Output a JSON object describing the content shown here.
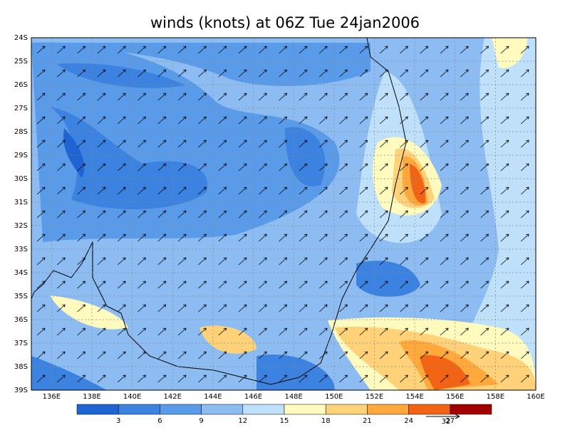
{
  "map": {
    "title": "winds (knots) at 06Z Tue 24jan2006",
    "lat_labels": [
      "24S",
      "25S",
      "26S",
      "27S",
      "28S",
      "29S",
      "30S",
      "31S",
      "32S",
      "33S",
      "34S",
      "35S",
      "36S",
      "37S",
      "38S",
      "39S"
    ],
    "lon_labels": [
      "136E",
      "138E",
      "140E",
      "142E",
      "144E",
      "146E",
      "148E",
      "150E",
      "152E",
      "154E",
      "156E",
      "158E",
      "160E"
    ],
    "colorbar": {
      "levels": [
        3,
        6,
        9,
        12,
        15,
        18,
        21,
        24,
        27
      ],
      "colors": [
        "#1f64d2",
        "#3c82e1",
        "#5a9be9",
        "#8cbcf2",
        "#bfe0fa",
        "#fffabe",
        "#ffd27a",
        "#ffa83c",
        "#f26414",
        "#a00000"
      ]
    },
    "vector_scale": 32
  }
}
